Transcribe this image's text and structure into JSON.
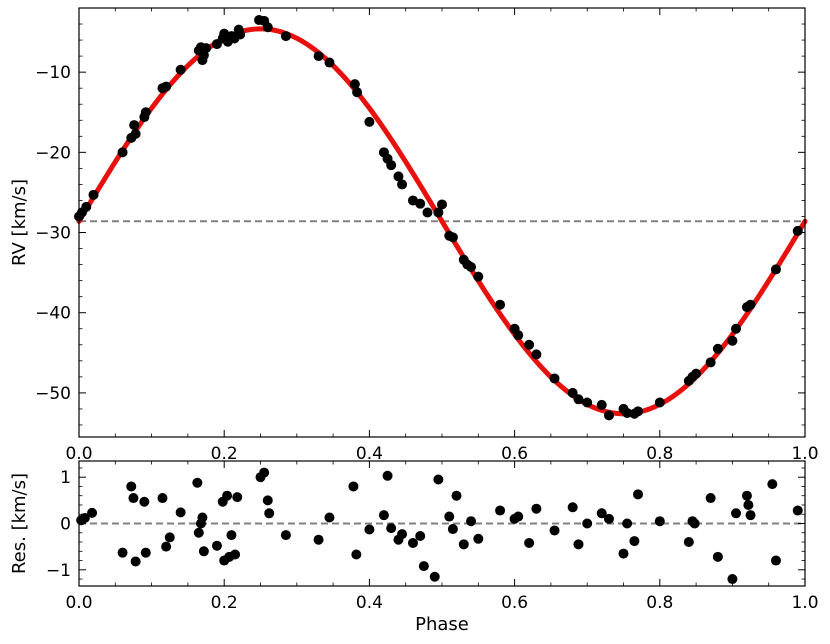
{
  "chart_data": [
    {
      "type": "scatter",
      "panel": "top",
      "title": "",
      "xlabel": "",
      "ylabel": "RV [km/s]",
      "xlim": [
        0.0,
        1.0
      ],
      "ylim": [
        -55.5,
        -2.0
      ],
      "x_ticks": [
        0.0,
        0.2,
        0.4,
        0.6,
        0.8,
        1.0
      ],
      "x_tick_labels": [
        "0.0",
        "0.2",
        "0.4",
        "0.6",
        "0.8",
        "1.0"
      ],
      "y_ticks": [
        -10,
        -20,
        -30,
        -40,
        -50
      ],
      "y_tick_labels": [
        "−10",
        "−20",
        "−30",
        "−40",
        "−50"
      ],
      "reference_line": {
        "y": -28.6,
        "style": "dashed",
        "color": "#808080"
      },
      "model": {
        "kind": "sinusoid",
        "gamma": -28.6,
        "amplitude": 24.0,
        "phase_of_max": 0.25,
        "color": "#e8100c"
      },
      "point_color": "#000000",
      "grid": false,
      "x": [
        0.0,
        0.004,
        0.01,
        0.02,
        0.06,
        0.072,
        0.076,
        0.078,
        0.09,
        0.092,
        0.115,
        0.12,
        0.14,
        0.165,
        0.168,
        0.17,
        0.172,
        0.175,
        0.19,
        0.198,
        0.2,
        0.205,
        0.21,
        0.214,
        0.22,
        0.222,
        0.248,
        0.255,
        0.26,
        0.285,
        0.33,
        0.345,
        0.38,
        0.383,
        0.4,
        0.42,
        0.425,
        0.43,
        0.44,
        0.445,
        0.46,
        0.47,
        0.48,
        0.495,
        0.5,
        0.51,
        0.515,
        0.53,
        0.535,
        0.54,
        0.55,
        0.58,
        0.6,
        0.605,
        0.62,
        0.63,
        0.655,
        0.68,
        0.688,
        0.7,
        0.72,
        0.73,
        0.75,
        0.755,
        0.765,
        0.77,
        0.8,
        0.84,
        0.845,
        0.85,
        0.87,
        0.88,
        0.9,
        0.905,
        0.92,
        0.925,
        0.96,
        0.99
      ],
      "y": [
        -28.0,
        -27.5,
        -26.8,
        -25.3,
        -20.0,
        -18.2,
        -16.6,
        -17.7,
        -15.6,
        -15.0,
        -12.0,
        -11.8,
        -9.7,
        -7.3,
        -6.9,
        -8.5,
        -7.9,
        -7.0,
        -6.5,
        -5.8,
        -5.2,
        -6.2,
        -5.5,
        -5.8,
        -4.7,
        -5.3,
        -3.5,
        -3.6,
        -4.4,
        -5.5,
        -8.0,
        -8.8,
        -11.5,
        -12.5,
        -16.2,
        -20.0,
        -20.8,
        -21.6,
        -23.0,
        -24.0,
        -26.0,
        -26.4,
        -27.5,
        -27.5,
        -26.5,
        -30.4,
        -30.6,
        -33.4,
        -34.0,
        -34.3,
        -35.5,
        -39.0,
        -42.0,
        -42.8,
        -44.0,
        -45.2,
        -48.2,
        -50.0,
        -50.8,
        -51.2,
        -51.5,
        -52.8,
        -52.0,
        -52.5,
        -52.6,
        -52.3,
        -51.2,
        -48.5,
        -48.0,
        -47.6,
        -46.2,
        -44.5,
        -43.5,
        -42.0,
        -39.3,
        -39.0,
        -34.6,
        -29.8
      ]
    },
    {
      "type": "scatter",
      "panel": "bottom",
      "title": "",
      "xlabel": "Phase",
      "ylabel": "Res. [km/s]",
      "xlim": [
        0.0,
        1.0
      ],
      "ylim": [
        -1.35,
        1.35
      ],
      "x_ticks": [
        0.0,
        0.2,
        0.4,
        0.6,
        0.8,
        1.0
      ],
      "x_tick_labels": [
        "0.0",
        "0.2",
        "0.4",
        "0.6",
        "0.8",
        "1.0"
      ],
      "y_ticks": [
        1,
        0,
        -1
      ],
      "y_tick_labels": [
        "1",
        "0",
        "−1"
      ],
      "reference_line": {
        "y": 0,
        "style": "dashed",
        "color": "#808080"
      },
      "point_color": "#000000",
      "grid": false,
      "x": [
        0.003,
        0.008,
        0.018,
        0.06,
        0.072,
        0.075,
        0.078,
        0.09,
        0.092,
        0.115,
        0.12,
        0.125,
        0.14,
        0.163,
        0.165,
        0.168,
        0.17,
        0.172,
        0.19,
        0.198,
        0.2,
        0.204,
        0.207,
        0.21,
        0.215,
        0.218,
        0.25,
        0.255,
        0.26,
        0.262,
        0.285,
        0.33,
        0.345,
        0.378,
        0.382,
        0.4,
        0.42,
        0.425,
        0.43,
        0.44,
        0.445,
        0.46,
        0.47,
        0.475,
        0.49,
        0.495,
        0.51,
        0.515,
        0.52,
        0.53,
        0.54,
        0.55,
        0.58,
        0.6,
        0.605,
        0.62,
        0.63,
        0.655,
        0.68,
        0.688,
        0.7,
        0.72,
        0.73,
        0.75,
        0.755,
        0.765,
        0.77,
        0.8,
        0.84,
        0.845,
        0.848,
        0.87,
        0.88,
        0.9,
        0.905,
        0.92,
        0.922,
        0.925,
        0.955,
        0.96,
        0.99
      ],
      "y": [
        0.07,
        0.12,
        0.23,
        -0.63,
        0.8,
        0.55,
        -0.82,
        0.47,
        -0.63,
        0.55,
        -0.5,
        -0.3,
        0.24,
        0.88,
        -0.2,
        0.0,
        0.13,
        -0.6,
        -0.48,
        0.47,
        -0.8,
        0.6,
        -0.72,
        -0.25,
        -0.67,
        0.57,
        1.0,
        1.1,
        0.5,
        0.22,
        -0.25,
        -0.35,
        0.13,
        0.8,
        -0.67,
        -0.13,
        0.18,
        1.03,
        -0.1,
        -0.35,
        -0.23,
        -0.42,
        -0.27,
        -0.92,
        -1.15,
        0.95,
        0.15,
        -0.12,
        0.6,
        -0.45,
        0.05,
        -0.33,
        0.28,
        0.1,
        0.15,
        -0.42,
        0.32,
        -0.15,
        0.35,
        -0.45,
        0.0,
        0.22,
        0.1,
        -0.65,
        0.0,
        -0.38,
        0.63,
        0.05,
        -0.4,
        0.05,
        0.0,
        0.55,
        -0.72,
        -1.2,
        0.22,
        0.6,
        0.4,
        0.18,
        0.85,
        -0.8,
        0.28
      ]
    }
  ]
}
